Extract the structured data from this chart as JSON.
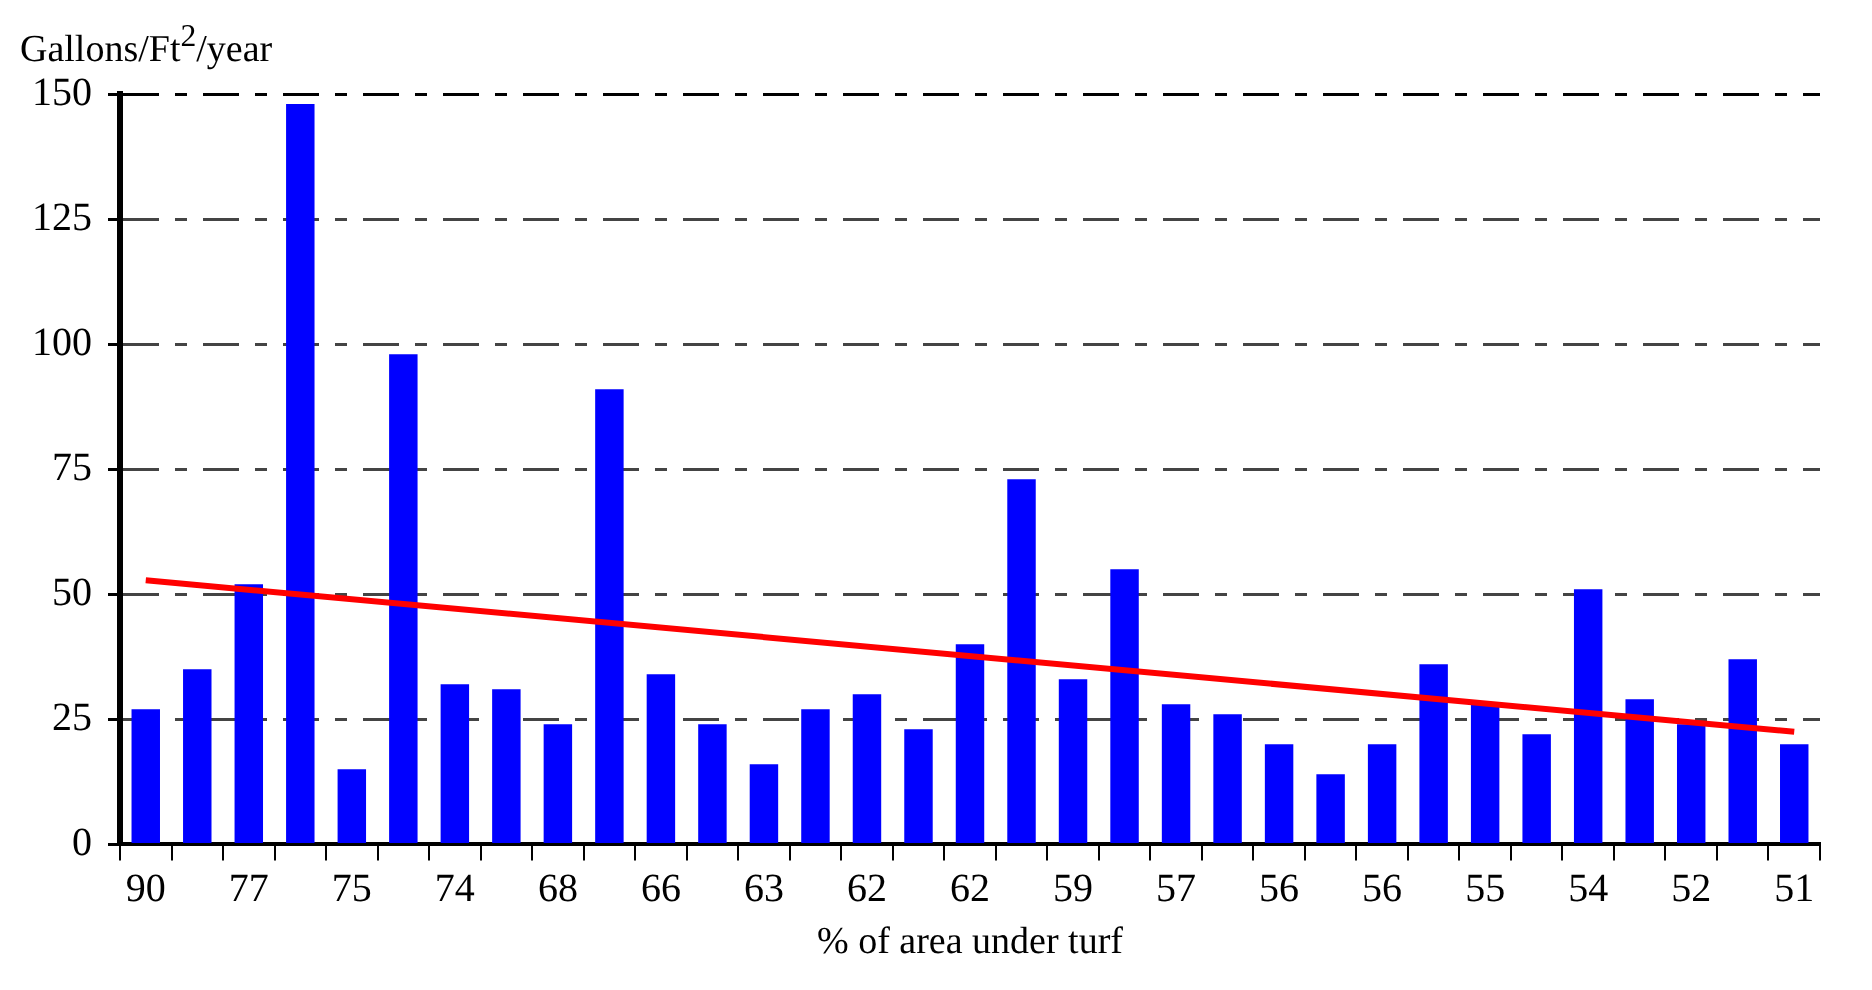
{
  "chart_data": {
    "type": "bar",
    "ylabel": "Gallons/Ft$^{2}$/year",
    "xlabel": "% of area under turf",
    "categories": [
      "90",
      null,
      "77",
      null,
      "75",
      null,
      "74",
      null,
      "68",
      null,
      "66",
      null,
      "63",
      null,
      "62",
      null,
      "62",
      null,
      "59",
      null,
      "57",
      null,
      "56",
      null,
      "56",
      null,
      "55",
      null,
      "54",
      null,
      "52",
      null,
      "51"
    ],
    "series": [
      {
        "color": "#0000ff",
        "values": [
          27,
          35,
          52,
          148,
          15,
          98,
          32,
          31,
          24,
          91,
          34,
          24,
          16,
          27,
          30,
          23,
          40,
          73,
          33,
          55,
          28,
          26,
          20,
          14,
          20,
          36,
          28,
          22,
          51,
          29,
          24,
          37,
          20
        ]
      },
      {
        "type": "line",
        "color": "#ff0000",
        "marker": "none",
        "line_style": "solid",
        "values": [
          52.8,
          null,
          null,
          null,
          null,
          null,
          null,
          null,
          null,
          null,
          null,
          null,
          null,
          null,
          null,
          null,
          null,
          null,
          null,
          null,
          null,
          null,
          null,
          null,
          null,
          null,
          null,
          null,
          null,
          null,
          null,
          null,
          22.5
        ]
      }
    ],
    "ylim": [
      0,
      150
    ],
    "yticks": [
      0,
      25,
      50,
      75,
      100,
      125,
      150
    ],
    "grid": "y",
    "legend": false
  }
}
